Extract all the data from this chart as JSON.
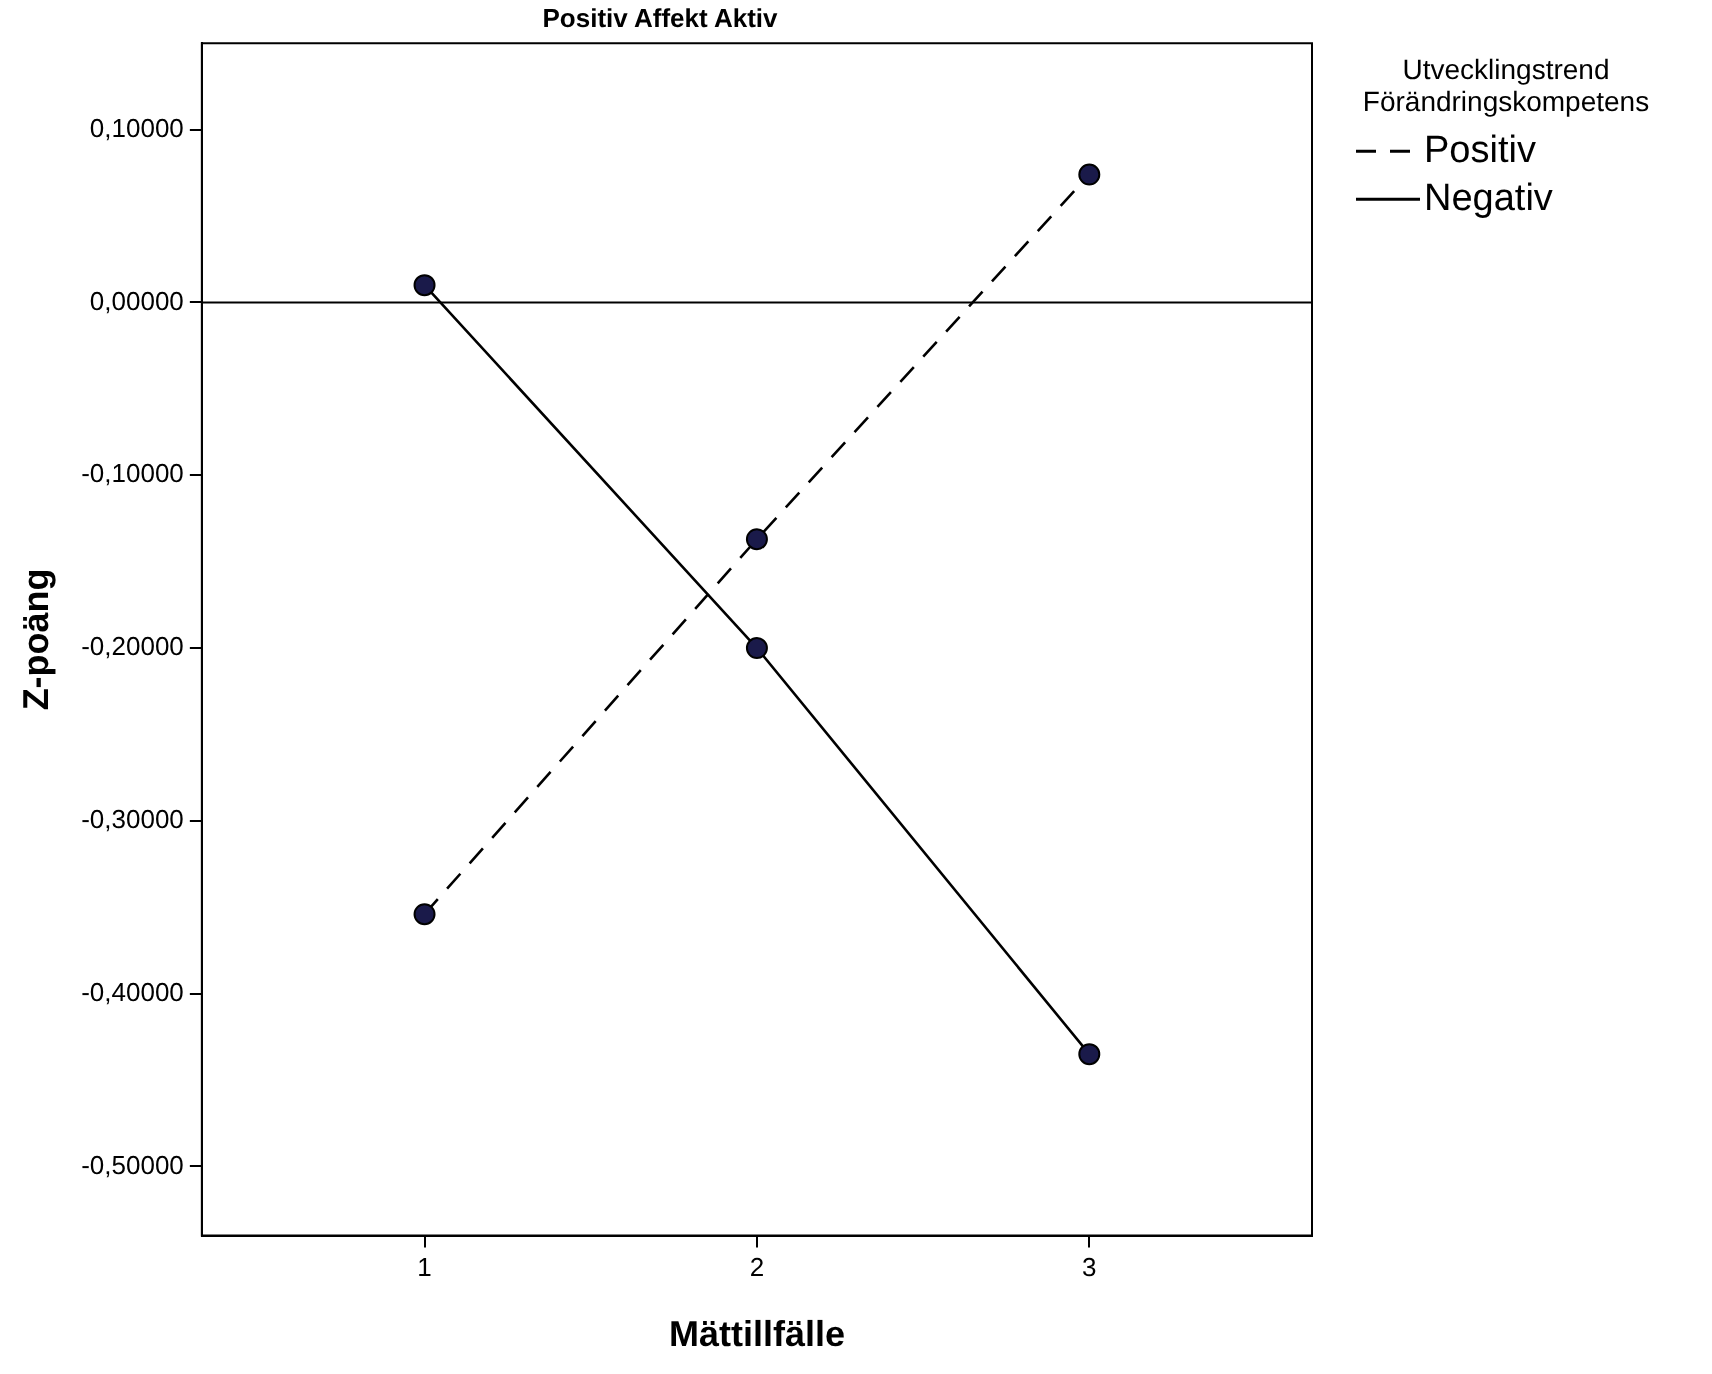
{
  "chart_data": {
    "type": "line",
    "title": "Positiv Affekt Aktiv",
    "xlabel": "Mättillfälle",
    "ylabel": "Z-poäng",
    "legend_title": "Utvecklingstrend Förändringskompetens",
    "x": [
      1,
      2,
      3
    ],
    "xlim": [
      0.33,
      3.67
    ],
    "xticks": [
      1,
      2,
      3
    ],
    "ylim": [
      -0.54,
      0.15
    ],
    "yticks": [
      {
        "value": 0.1,
        "label": "0,10000"
      },
      {
        "value": 0,
        "label": "0,00000"
      },
      {
        "value": -0.1,
        "label": "-0,10000"
      },
      {
        "value": -0.2,
        "label": "-0,20000"
      },
      {
        "value": -0.3,
        "label": "-0,30000"
      },
      {
        "value": -0.4,
        "label": "-0,40000"
      },
      {
        "value": -0.5,
        "label": "-0,50000"
      }
    ],
    "series": [
      {
        "name": "Positiv",
        "color": "#000000",
        "line_style": "dashed",
        "values": [
          -0.354,
          -0.137,
          0.074
        ]
      },
      {
        "name": "Negativ",
        "color": "#000000",
        "line_style": "solid",
        "values": [
          0.01,
          -0.2,
          -0.435
        ]
      }
    ],
    "ref_lines": [
      {
        "axis": "y",
        "value": 0,
        "color": "#000000"
      }
    ],
    "marker": "circle",
    "grid": false,
    "legend": "top right"
  }
}
